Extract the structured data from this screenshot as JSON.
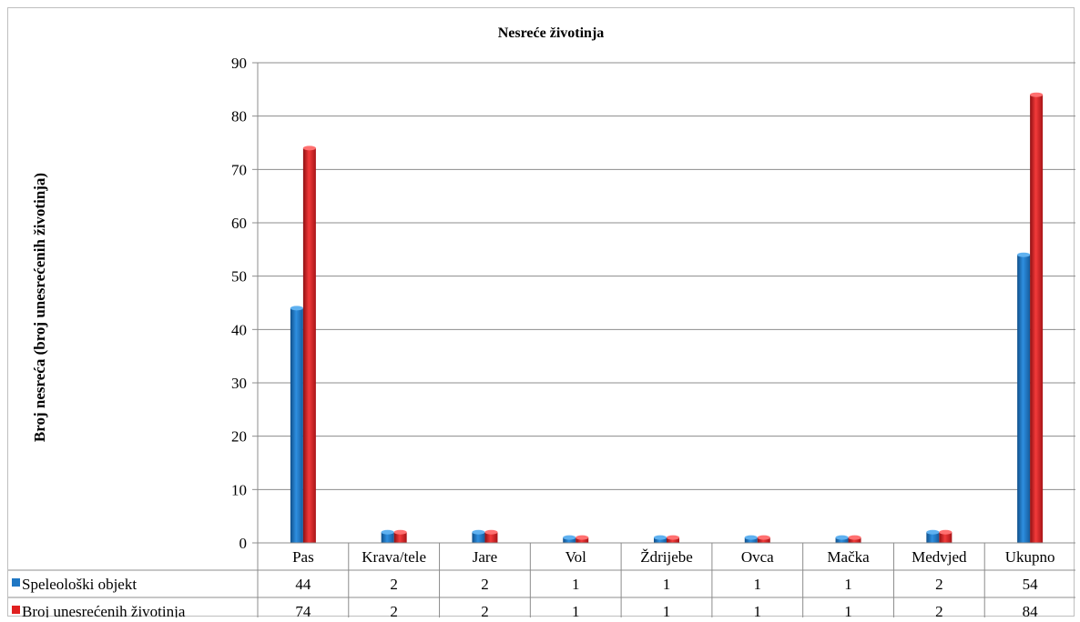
{
  "chart_data": {
    "type": "bar",
    "title": "Nesreće životinja",
    "ylabel": "Broj nesreća (broj unesrećenih životinja)",
    "xlabel": "",
    "ylim": [
      0,
      90
    ],
    "yticks": [
      0,
      10,
      20,
      30,
      40,
      50,
      60,
      70,
      80,
      90
    ],
    "grid": true,
    "legend": "data-table-left",
    "categories": [
      "Pas",
      "Krava/tele",
      "Jare",
      "Vol",
      "Ždrijebe",
      "Ovca",
      "Mačka",
      "Medvjed",
      "Ukupno"
    ],
    "series": [
      {
        "name": "Speleološki objekt",
        "color": "#1f77c4",
        "values": [
          44,
          2,
          2,
          1,
          1,
          1,
          1,
          2,
          54
        ]
      },
      {
        "name": "Broj unesrećenih životinja",
        "color": "#e02020",
        "values": [
          74,
          2,
          2,
          1,
          1,
          1,
          1,
          2,
          84
        ]
      }
    ]
  }
}
